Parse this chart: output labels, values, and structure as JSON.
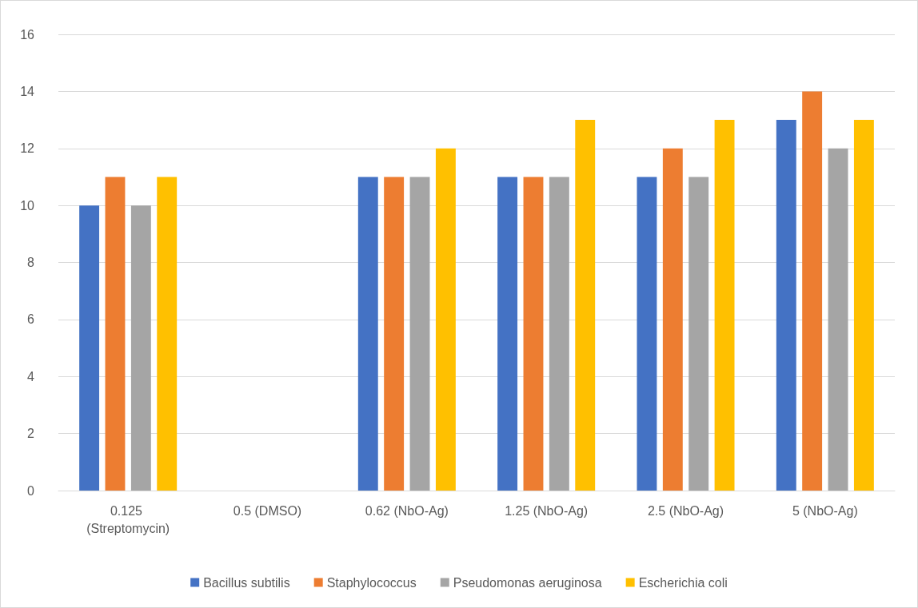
{
  "chart_data": {
    "type": "bar",
    "categories": [
      "0.125 (Streptomycin)",
      "0.5 (DMSO)",
      "0.62 (NbO-Ag)",
      "1.25 (NbO-Ag)",
      "2.5 (NbO-Ag)",
      "5 (NbO-Ag)"
    ],
    "series": [
      {
        "name": "Bacillus subtilis",
        "color": "#4472c4",
        "values": [
          10,
          0,
          11,
          11,
          11,
          13
        ]
      },
      {
        "name": "Staphylococcus",
        "color": "#ed7d31",
        "values": [
          11,
          0,
          11,
          11,
          12,
          14
        ]
      },
      {
        "name": "Pseudomonas aeruginosa",
        "color": "#a5a5a5",
        "values": [
          10,
          0,
          11,
          11,
          11,
          12
        ]
      },
      {
        "name": "Escherichia coli",
        "color": "#ffc000",
        "values": [
          11,
          0,
          12,
          13,
          13,
          13
        ]
      }
    ],
    "ylim": [
      0,
      16
    ],
    "yticks": [
      0,
      2,
      4,
      6,
      8,
      10,
      12,
      14,
      16
    ],
    "grid": "y",
    "legend": "bottom"
  }
}
